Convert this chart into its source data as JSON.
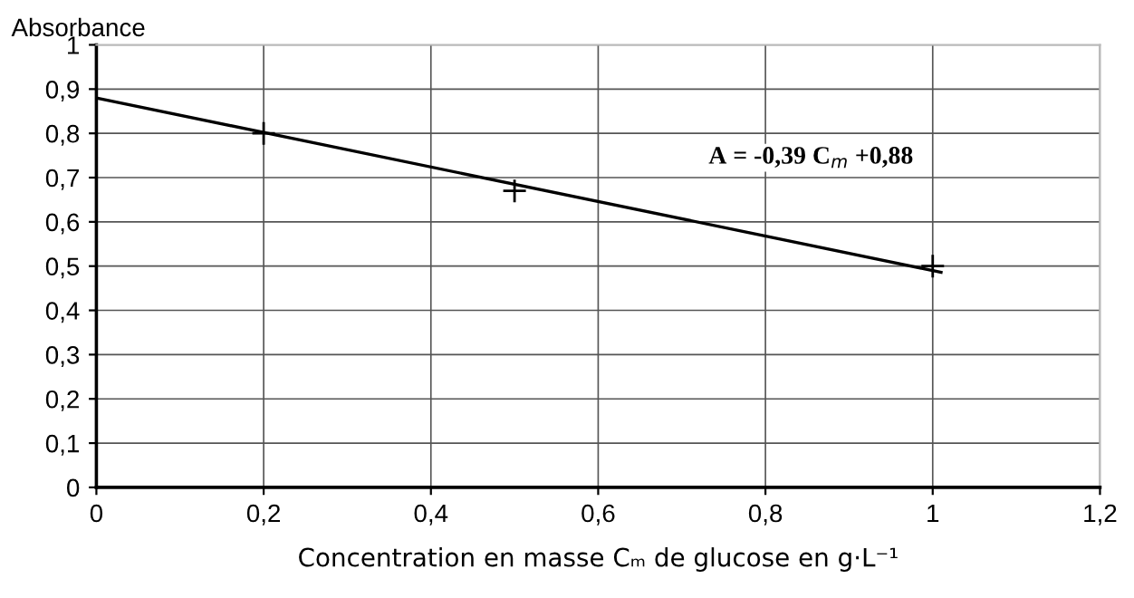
{
  "chart_data": {
    "type": "scatter",
    "xlabel": "Concentration en masse Cₘ de glucose en g·L⁻¹",
    "ylabel": "Absorbance",
    "x": [
      0.2,
      0.5,
      1.0
    ],
    "series": [
      {
        "color": "#000000",
        "values": [
          0.8,
          0.67,
          0.5
        ],
        "marker": "cross"
      },
      {
        "type": "line",
        "color": "#000000",
        "x": [
          0,
          1.01
        ],
        "values": [
          0.88,
          0.486
        ],
        "marker": "none"
      }
    ],
    "annotations": [
      "A = -0,39 C$_{m}$ +0,88"
    ],
    "xlim": [
      0,
      1.2
    ],
    "ylim": [
      0,
      1
    ],
    "xticks": [
      0,
      {
        "value": 0.2,
        "label": "0,2"
      },
      {
        "value": 0.4,
        "label": "0,4"
      },
      {
        "value": 0.6,
        "label": "0,6"
      },
      {
        "value": 0.8,
        "label": "0,8"
      },
      1,
      {
        "value": 1.2,
        "label": "1,2"
      }
    ],
    "yticks": [
      0,
      {
        "value": 0.1,
        "label": "0,1"
      },
      {
        "value": 0.2,
        "label": "0,2"
      },
      {
        "value": 0.3,
        "label": "0,3"
      },
      {
        "value": 0.4,
        "label": "0,4"
      },
      {
        "value": 0.5,
        "label": "0,5"
      },
      {
        "value": 0.6,
        "label": "0,6"
      },
      {
        "value": 0.7,
        "label": "0,7"
      },
      {
        "value": 0.8,
        "label": "0,8"
      },
      {
        "value": 0.9,
        "label": "0,9"
      },
      1
    ],
    "grid": true,
    "legend": false
  }
}
